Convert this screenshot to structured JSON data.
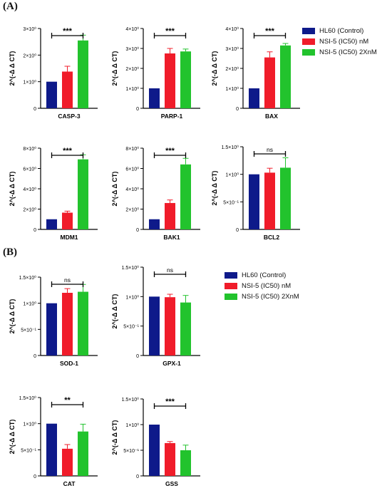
{
  "panels": [
    {
      "label": "(A)"
    },
    {
      "label": "(B)"
    }
  ],
  "legend": [
    {
      "label": "HL60 (Control)",
      "color": "#0e1a8a"
    },
    {
      "label": "NSI-5 (IC50) nM",
      "color": "#f01c2a"
    },
    {
      "label": "NSI-5 (IC50) 2XnM",
      "color": "#22c32d"
    }
  ],
  "legend_b": [
    {
      "label": "HL60 (Control)",
      "color": "#0e1a8a"
    },
    {
      "label": "NSI-5 (IC50) nM",
      "color": "#f01c2a"
    },
    {
      "label": "NSI-5 (IC50) 2XnM",
      "color": "#22c32d"
    }
  ],
  "chart_data": [
    {
      "type": "bar",
      "xlabel": "CASP-3",
      "ylabel": "2^(-Δ Δ CT)",
      "ylim": [
        0,
        3
      ],
      "yticks": [
        {
          "value": 0,
          "label": "0"
        },
        {
          "value": 1,
          "label": "1×10⁰"
        },
        {
          "value": 2,
          "label": "2×10⁰"
        },
        {
          "value": 3,
          "label": "3×10⁰"
        }
      ],
      "values": [
        1.0,
        1.38,
        2.55
      ],
      "errors": [
        0,
        0.2,
        0.2
      ],
      "significance": "***"
    },
    {
      "type": "bar",
      "xlabel": "PARP-1",
      "ylabel": "2^(-Δ Δ CT)",
      "ylim": [
        0,
        4
      ],
      "yticks": [
        {
          "value": 0,
          "label": "0"
        },
        {
          "value": 1,
          "label": "1×10⁰"
        },
        {
          "value": 2,
          "label": "2×10⁰"
        },
        {
          "value": 3,
          "label": "3×10⁰"
        },
        {
          "value": 4,
          "label": "4×10⁰"
        }
      ],
      "values": [
        1.0,
        2.75,
        2.85
      ],
      "errors": [
        0,
        0.25,
        0.12
      ],
      "significance": "***"
    },
    {
      "type": "bar",
      "xlabel": "BAX",
      "ylabel": "2^(-Δ Δ CT)",
      "ylim": [
        0,
        4
      ],
      "yticks": [
        {
          "value": 0,
          "label": "0"
        },
        {
          "value": 1,
          "label": "1×10⁰"
        },
        {
          "value": 2,
          "label": "2×10⁰"
        },
        {
          "value": 3,
          "label": "3×10⁰"
        },
        {
          "value": 4,
          "label": "4×10⁰"
        }
      ],
      "values": [
        1.0,
        2.55,
        3.15
      ],
      "errors": [
        0,
        0.28,
        0.1
      ],
      "significance": "***"
    },
    {
      "type": "bar",
      "xlabel": "MDM1",
      "ylabel": "2^(-Δ Δ CT)",
      "ylim": [
        0,
        8
      ],
      "yticks": [
        {
          "value": 0,
          "label": "0"
        },
        {
          "value": 2,
          "label": "2×10⁰"
        },
        {
          "value": 4,
          "label": "4×10⁰"
        },
        {
          "value": 6,
          "label": "6×10⁰"
        },
        {
          "value": 8,
          "label": "8×10⁰"
        }
      ],
      "values": [
        1.0,
        1.65,
        6.9
      ],
      "errors": [
        0,
        0.15,
        0.45
      ],
      "significance": "***"
    },
    {
      "type": "bar",
      "xlabel": "BAK1",
      "ylabel": "2^(-Δ Δ CT)",
      "ylim": [
        0,
        8
      ],
      "yticks": [
        {
          "value": 0,
          "label": "0"
        },
        {
          "value": 2,
          "label": "2×10⁰"
        },
        {
          "value": 4,
          "label": "4×10⁰"
        },
        {
          "value": 6,
          "label": "6×10⁰"
        },
        {
          "value": 8,
          "label": "8×10⁰"
        }
      ],
      "values": [
        1.0,
        2.6,
        6.4
      ],
      "errors": [
        0,
        0.3,
        0.6
      ],
      "significance": "***"
    },
    {
      "type": "bar",
      "xlabel": "BCL2",
      "ylabel": "2^(-Δ Δ CT)",
      "ylim": [
        0,
        1.5
      ],
      "yticks": [
        {
          "value": 0,
          "label": "0"
        },
        {
          "value": 0.5,
          "label": "5×10⁻¹"
        },
        {
          "value": 1,
          "label": "1×10⁰"
        },
        {
          "value": 1.5,
          "label": "1.5×10⁰"
        }
      ],
      "values": [
        1.0,
        1.03,
        1.12
      ],
      "errors": [
        0,
        0.08,
        0.18
      ],
      "significance": "ns"
    },
    {
      "type": "bar",
      "xlabel": "SOD-1",
      "ylabel": "2^(-Δ Δ CT)",
      "ylim": [
        0,
        1.5
      ],
      "yticks": [
        {
          "value": 0,
          "label": "0"
        },
        {
          "value": 0.5,
          "label": "5×10⁻¹"
        },
        {
          "value": 1,
          "label": "1×10⁰"
        },
        {
          "value": 1.5,
          "label": "1.5×10⁰"
        }
      ],
      "values": [
        1.0,
        1.2,
        1.22
      ],
      "errors": [
        0,
        0.08,
        0.14
      ],
      "significance": "ns"
    },
    {
      "type": "bar",
      "xlabel": "GPX-1",
      "ylabel": "2^(-Δ Δ CT)",
      "ylim": [
        0,
        1.5
      ],
      "yticks": [
        {
          "value": 0,
          "label": "0"
        },
        {
          "value": 0.5,
          "label": "5×10⁻¹"
        },
        {
          "value": 1,
          "label": "1×10⁰"
        },
        {
          "value": 1.5,
          "label": "1.5×10⁰"
        }
      ],
      "values": [
        1.0,
        0.99,
        0.9
      ],
      "errors": [
        0,
        0.05,
        0.12
      ],
      "significance": "ns"
    },
    {
      "type": "bar",
      "xlabel": "CAT",
      "ylabel": "2^(-Δ Δ CT)",
      "ylim": [
        0,
        1.5
      ],
      "yticks": [
        {
          "value": 0,
          "label": "0"
        },
        {
          "value": 0.5,
          "label": "5×10⁻¹"
        },
        {
          "value": 1,
          "label": "1×10⁰"
        },
        {
          "value": 1.5,
          "label": "1.5×10⁰"
        }
      ],
      "values": [
        1.0,
        0.52,
        0.85
      ],
      "errors": [
        0,
        0.08,
        0.14
      ],
      "significance": "**"
    },
    {
      "type": "bar",
      "xlabel": "GSS",
      "ylabel": "2^(-Δ Δ CT)",
      "ylim": [
        0,
        1.5
      ],
      "yticks": [
        {
          "value": 0,
          "label": "0"
        },
        {
          "value": 0.5,
          "label": "5×10⁻¹"
        },
        {
          "value": 1,
          "label": "1×10⁰"
        },
        {
          "value": 1.5,
          "label": "1.5×10⁰"
        }
      ],
      "values": [
        1.0,
        0.64,
        0.5
      ],
      "errors": [
        0,
        0.03,
        0.1
      ],
      "significance": "***"
    }
  ]
}
